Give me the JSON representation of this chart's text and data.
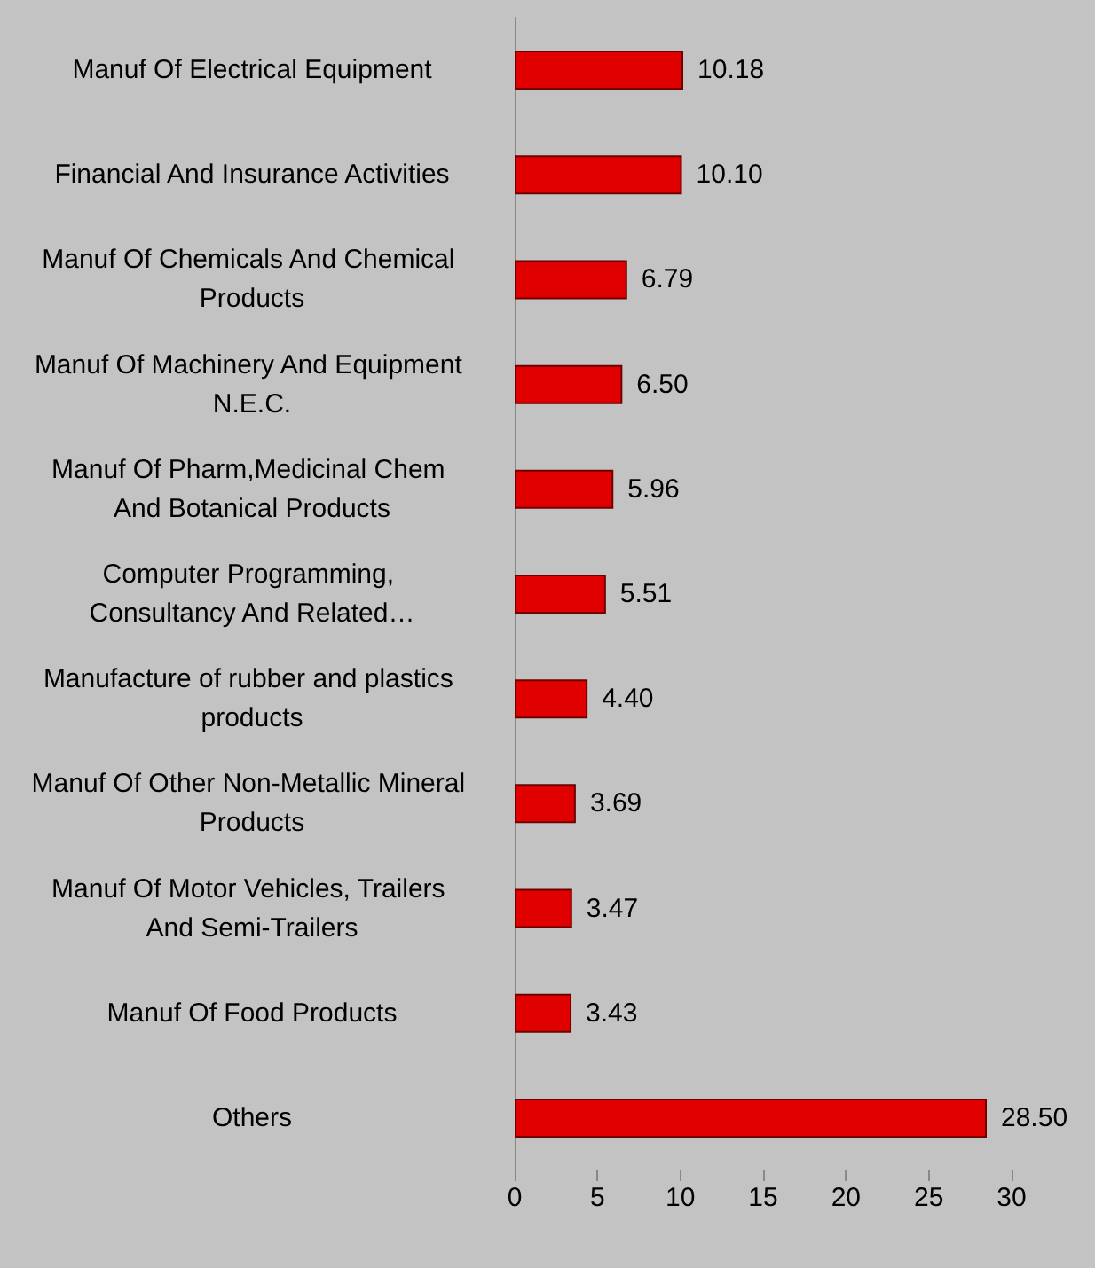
{
  "chart_data": {
    "type": "bar",
    "orientation": "horizontal",
    "categories": [
      "Manuf Of Electrical Equipment",
      "Financial And Insurance Activities",
      "Manuf Of Chemicals And Chemical Products",
      "Manuf Of Machinery And Equipment N.E.C.",
      "Manuf Of Pharm,Medicinal Chem And Botanical Products",
      "Computer Programming, Consultancy And Related…",
      "Manufacture of rubber and plastics products",
      "Manuf Of Other Non-Metallic Mineral Products",
      "Manuf Of Motor Vehicles, Trailers And Semi-Trailers",
      "Manuf Of Food Products",
      "Others"
    ],
    "values": [
      10.18,
      10.1,
      6.79,
      6.5,
      5.96,
      5.51,
      4.4,
      3.69,
      3.47,
      3.43,
      28.5
    ],
    "value_labels": [
      "10.18",
      "10.10",
      "6.79",
      "6.50",
      "5.96",
      "5.51",
      "4.40",
      "3.69",
      "3.47",
      "3.43",
      "28.50"
    ],
    "color": "#e00000",
    "xlim": [
      0,
      30
    ],
    "xticks": [
      0,
      5,
      10,
      15,
      20,
      25,
      30
    ],
    "grid": false
  }
}
